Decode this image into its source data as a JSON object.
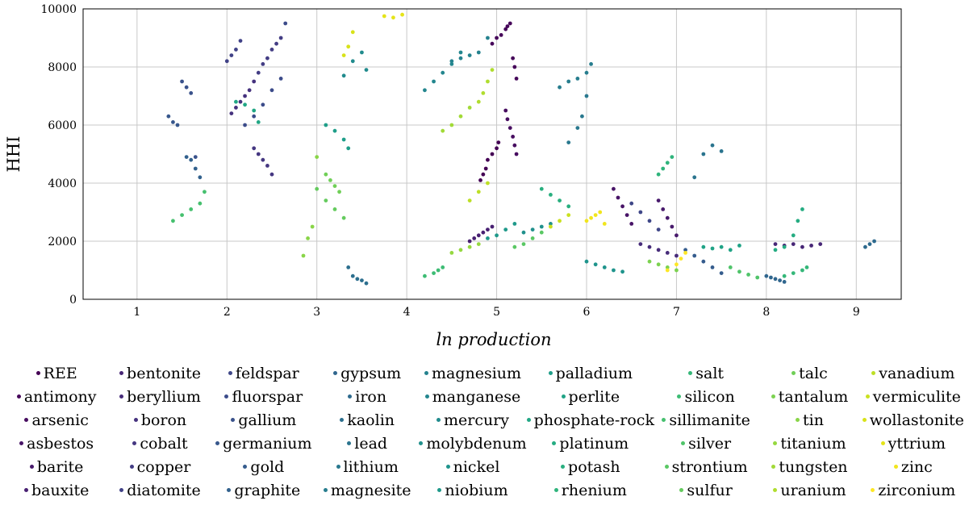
{
  "chart_data": {
    "type": "scatter",
    "xlabel": "ln production",
    "ylabel": "HHI",
    "xlim": [
      0.4,
      9.5
    ],
    "ylim": [
      0,
      10000
    ],
    "xticks": [
      1,
      2,
      3,
      4,
      5,
      6,
      7,
      8,
      9
    ],
    "yticks": [
      0,
      2000,
      4000,
      6000,
      8000,
      10000
    ],
    "grid": true,
    "legend_position": "bottom",
    "colormap": "viridis",
    "series": [
      {
        "name": "REE",
        "color": "#440154",
        "x": [
          4.82,
          4.85,
          4.88,
          4.9,
          4.95,
          5.0,
          5.02
        ],
        "y": [
          4100,
          4300,
          4500,
          4800,
          5000,
          5200,
          5400
        ]
      },
      {
        "name": "antimony",
        "color": "#46075a",
        "x": [
          4.95,
          5.0,
          5.05,
          5.1,
          5.12,
          5.15,
          5.18,
          5.2,
          5.22
        ],
        "y": [
          8800,
          9000,
          9100,
          9300,
          9400,
          9500,
          8300,
          8000,
          7600
        ]
      },
      {
        "name": "arsenic",
        "color": "#470d60",
        "x": [
          5.1,
          5.12,
          5.15,
          5.18,
          5.2,
          5.22
        ],
        "y": [
          6500,
          6200,
          5900,
          5600,
          5300,
          5000
        ]
      },
      {
        "name": "asbestos",
        "color": "#481467",
        "x": [
          6.3,
          6.35,
          6.4,
          6.45,
          6.5
        ],
        "y": [
          3800,
          3500,
          3200,
          2900,
          2600
        ]
      },
      {
        "name": "barite",
        "color": "#481a6c",
        "x": [
          6.8,
          6.85,
          6.9,
          6.95,
          7.0
        ],
        "y": [
          3400,
          3100,
          2800,
          2500,
          2200
        ]
      },
      {
        "name": "bauxite",
        "color": "#482072",
        "x": [
          4.7,
          4.75,
          4.8,
          4.85,
          4.9,
          4.95
        ],
        "y": [
          2000,
          2100,
          2200,
          2300,
          2400,
          2500
        ]
      },
      {
        "name": "bentonite",
        "color": "#472676",
        "x": [
          8.1,
          8.2,
          8.3,
          8.4,
          8.5,
          8.6
        ],
        "y": [
          1900,
          1850,
          1900,
          1800,
          1850,
          1900
        ]
      },
      {
        "name": "beryllium",
        "color": "#472c7a",
        "x": [
          6.6,
          6.7,
          6.8,
          6.9,
          7.0
        ],
        "y": [
          1900,
          1800,
          1700,
          1600,
          1500
        ]
      },
      {
        "name": "boron",
        "color": "#46327e",
        "x": [
          2.05,
          2.1,
          2.15,
          2.2,
          2.25,
          2.3
        ],
        "y": [
          6400,
          6600,
          6800,
          7000,
          7200,
          7500
        ]
      },
      {
        "name": "cobalt",
        "color": "#453781",
        "x": [
          2.3,
          2.35,
          2.4,
          2.45,
          2.5
        ],
        "y": [
          5200,
          5000,
          4800,
          4600,
          4300
        ]
      },
      {
        "name": "copper",
        "color": "#433d84",
        "x": [
          2.35,
          2.4,
          2.45,
          2.5,
          2.55,
          2.6
        ],
        "y": [
          7800,
          8100,
          8300,
          8600,
          8800,
          9000
        ]
      },
      {
        "name": "diatomite",
        "color": "#414287",
        "x": [
          2.0,
          2.05,
          2.1,
          2.15
        ],
        "y": [
          8200,
          8400,
          8600,
          8900
        ]
      },
      {
        "name": "feldspar",
        "color": "#3f4788",
        "x": [
          6.5,
          6.6,
          6.7,
          6.8
        ],
        "y": [
          3300,
          3000,
          2700,
          2400
        ]
      },
      {
        "name": "fluorspar",
        "color": "#3c4c8a",
        "x": [
          2.2,
          2.3,
          2.4,
          2.5,
          2.6,
          2.65
        ],
        "y": [
          6000,
          6300,
          6700,
          7200,
          7600,
          9500
        ]
      },
      {
        "name": "gallium",
        "color": "#3a528b",
        "x": [
          1.5,
          1.55,
          1.6,
          1.65
        ],
        "y": [
          7500,
          7300,
          7100,
          4900
        ]
      },
      {
        "name": "germanium",
        "color": "#37578c",
        "x": [
          1.35,
          1.4,
          1.45
        ],
        "y": [
          6300,
          6100,
          6000
        ]
      },
      {
        "name": "gold",
        "color": "#355c8d",
        "x": [
          7.1,
          7.2,
          7.3,
          7.4,
          7.5
        ],
        "y": [
          1700,
          1500,
          1300,
          1100,
          900
        ]
      },
      {
        "name": "graphite",
        "color": "#32618d",
        "x": [
          1.55,
          1.6,
          1.65,
          1.7
        ],
        "y": [
          4900,
          4800,
          4500,
          4200
        ]
      },
      {
        "name": "gypsum",
        "color": "#30668e",
        "x": [
          8.0,
          8.05,
          8.1,
          8.15,
          8.2
        ],
        "y": [
          800,
          750,
          700,
          650,
          600
        ]
      },
      {
        "name": "iron",
        "color": "#2e6a8e",
        "x": [
          9.1,
          9.15,
          9.2
        ],
        "y": [
          1800,
          1900,
          2000
        ]
      },
      {
        "name": "kaolin",
        "color": "#2c6f8e",
        "x": [
          3.35,
          3.4,
          3.45,
          3.5,
          3.55
        ],
        "y": [
          1100,
          800,
          700,
          650,
          550
        ]
      },
      {
        "name": "lead",
        "color": "#2a748e",
        "x": [
          7.2,
          7.3,
          7.4,
          7.5
        ],
        "y": [
          4200,
          5000,
          5300,
          5100
        ]
      },
      {
        "name": "lithium",
        "color": "#29788e",
        "x": [
          5.8,
          5.9,
          5.95,
          6.0
        ],
        "y": [
          5400,
          5900,
          6300,
          7000
        ]
      },
      {
        "name": "magnesite",
        "color": "#277d8e",
        "x": [
          5.7,
          5.8,
          5.9,
          6.0,
          6.05
        ],
        "y": [
          7300,
          7500,
          7600,
          7800,
          8100
        ]
      },
      {
        "name": "magnesium",
        "color": "#25828e",
        "x": [
          4.5,
          4.6,
          4.7,
          4.8,
          4.9
        ],
        "y": [
          8200,
          8300,
          8400,
          8500,
          9000
        ]
      },
      {
        "name": "manganese",
        "color": "#23868e",
        "x": [
          4.2,
          4.3,
          4.4,
          4.5,
          4.6
        ],
        "y": [
          7200,
          7500,
          7800,
          8100,
          8500
        ]
      },
      {
        "name": "mercury",
        "color": "#218b8d",
        "x": [
          3.3,
          3.4,
          3.5,
          3.55
        ],
        "y": [
          7700,
          8200,
          8500,
          7900
        ]
      },
      {
        "name": "molybdenum",
        "color": "#20908c",
        "x": [
          5.3,
          5.4,
          5.5,
          5.6
        ],
        "y": [
          2300,
          2400,
          2500,
          2600
        ]
      },
      {
        "name": "nickel",
        "color": "#1f948c",
        "x": [
          6.0,
          6.1,
          6.2,
          6.3,
          6.4
        ],
        "y": [
          1300,
          1200,
          1100,
          1000,
          950
        ]
      },
      {
        "name": "niobium",
        "color": "#1f998a",
        "x": [
          4.9,
          5.0,
          5.1,
          5.2
        ],
        "y": [
          2100,
          2200,
          2400,
          2600
        ]
      },
      {
        "name": "palladium",
        "color": "#1f9e89",
        "x": [
          3.1,
          3.2,
          3.3,
          3.35
        ],
        "y": [
          6000,
          5800,
          5500,
          5200
        ]
      },
      {
        "name": "perlite",
        "color": "#20a386",
        "x": [
          7.3,
          7.4,
          7.5,
          7.6,
          7.7
        ],
        "y": [
          1800,
          1750,
          1800,
          1700,
          1850
        ]
      },
      {
        "name": "phosphate-rock",
        "color": "#22a785",
        "x": [
          2.1,
          2.2,
          2.3,
          2.35
        ],
        "y": [
          6800,
          6700,
          6500,
          6100
        ]
      },
      {
        "name": "platinum",
        "color": "#25ac82",
        "x": [
          8.1,
          8.2,
          8.3,
          8.35,
          8.4
        ],
        "y": [
          1700,
          1800,
          2200,
          2700,
          3100
        ]
      },
      {
        "name": "potash",
        "color": "#29af7f",
        "x": [
          5.5,
          5.6,
          5.7,
          5.8
        ],
        "y": [
          3800,
          3600,
          3400,
          3200
        ]
      },
      {
        "name": "rhenium",
        "color": "#2fb47c",
        "x": [
          6.8,
          6.85,
          6.9,
          6.95
        ],
        "y": [
          4300,
          4500,
          4700,
          4900
        ]
      },
      {
        "name": "salt",
        "color": "#35b779",
        "x": [
          8.2,
          8.3,
          8.4,
          8.45
        ],
        "y": [
          800,
          900,
          1000,
          1100
        ]
      },
      {
        "name": "silicon",
        "color": "#3dbc74",
        "x": [
          4.2,
          4.3,
          4.35,
          4.4
        ],
        "y": [
          800,
          900,
          1000,
          1100
        ]
      },
      {
        "name": "sillimanite",
        "color": "#46c06f",
        "x": [
          1.4,
          1.5,
          1.6,
          1.7,
          1.75
        ],
        "y": [
          2700,
          2900,
          3100,
          3300,
          3700
        ]
      },
      {
        "name": "silver",
        "color": "#50c46a",
        "x": [
          7.6,
          7.7,
          7.8,
          7.9
        ],
        "y": [
          1100,
          950,
          850,
          750
        ]
      },
      {
        "name": "strontium",
        "color": "#5ac864",
        "x": [
          5.2,
          5.3,
          5.4,
          5.5
        ],
        "y": [
          1800,
          1900,
          2100,
          2300
        ]
      },
      {
        "name": "sulfur",
        "color": "#65cb5e",
        "x": [
          3.0,
          3.1,
          3.2,
          3.3
        ],
        "y": [
          3800,
          3400,
          3100,
          2800
        ]
      },
      {
        "name": "talc",
        "color": "#70cf57",
        "x": [
          3.1,
          3.15,
          3.2,
          3.25
        ],
        "y": [
          4300,
          4100,
          3900,
          3700
        ]
      },
      {
        "name": "tantalum",
        "color": "#7cd250",
        "x": [
          6.7,
          6.8,
          6.9,
          7.0
        ],
        "y": [
          1300,
          1200,
          1100,
          1000
        ]
      },
      {
        "name": "tin",
        "color": "#89d548",
        "x": [
          2.85,
          2.9,
          2.95,
          3.0
        ],
        "y": [
          1500,
          2100,
          2500,
          4900
        ]
      },
      {
        "name": "titanium",
        "color": "#95d840",
        "x": [
          4.5,
          4.6,
          4.7,
          4.8
        ],
        "y": [
          1600,
          1700,
          1800,
          1900
        ]
      },
      {
        "name": "tungsten",
        "color": "#a2da37",
        "x": [
          4.4,
          4.5,
          4.6,
          4.7
        ],
        "y": [
          5800,
          6000,
          6300,
          6600
        ]
      },
      {
        "name": "uranium",
        "color": "#b0dd2f",
        "x": [
          4.8,
          4.85,
          4.9,
          4.95
        ],
        "y": [
          6800,
          7100,
          7500,
          7900
        ]
      },
      {
        "name": "vanadium",
        "color": "#bddf26",
        "x": [
          4.7,
          4.8,
          4.9
        ],
        "y": [
          3400,
          3700,
          4000
        ]
      },
      {
        "name": "vermiculite",
        "color": "#cae11f",
        "x": [
          5.6,
          5.7,
          5.8
        ],
        "y": [
          2500,
          2700,
          2900
        ]
      },
      {
        "name": "wollastonite",
        "color": "#d8e219",
        "x": [
          3.3,
          3.35,
          3.4
        ],
        "y": [
          8400,
          8700,
          9200
        ]
      },
      {
        "name": "yttrium",
        "color": "#e5e419",
        "x": [
          3.75,
          3.85,
          3.95
        ],
        "y": [
          9750,
          9700,
          9800
        ]
      },
      {
        "name": "zinc",
        "color": "#f1e51d",
        "x": [
          6.0,
          6.05,
          6.1,
          6.15,
          6.2
        ],
        "y": [
          2700,
          2800,
          2900,
          3000,
          2600
        ]
      },
      {
        "name": "zirconium",
        "color": "#fde725",
        "x": [
          6.9,
          7.0,
          7.05,
          7.1
        ],
        "y": [
          1000,
          1200,
          1400,
          1600
        ]
      }
    ]
  }
}
